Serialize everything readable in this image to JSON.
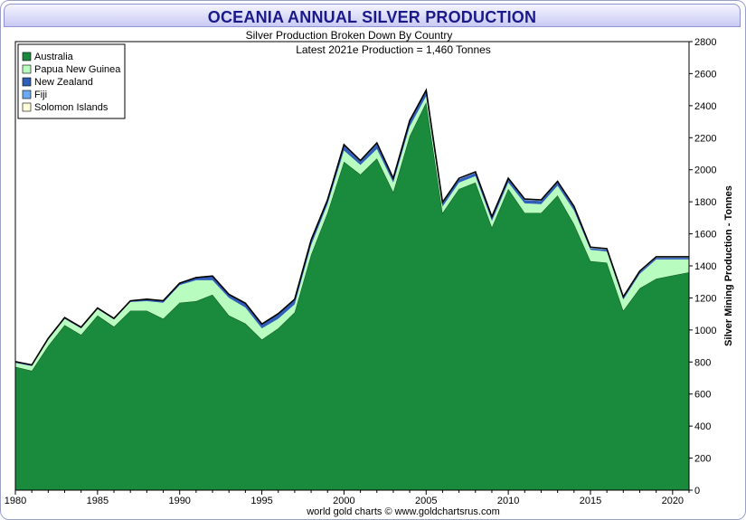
{
  "header": {
    "title": "OCEANIA ANNUAL SILVER PRODUCTION"
  },
  "chart_data": {
    "type": "area",
    "stacked": true,
    "subtitle": "Silver Production Broken Down By Country",
    "subtitle2": "Latest 2021e Production = 1,460 Tonnes",
    "ylabel": "Silver Mining Production - Tonnes",
    "ylim": [
      0,
      2800
    ],
    "yticks": [
      0,
      200,
      400,
      600,
      800,
      1000,
      1200,
      1400,
      1600,
      1800,
      2000,
      2200,
      2400,
      2600,
      2800
    ],
    "xlim": [
      1980,
      2021
    ],
    "xticks": [
      1980,
      1985,
      1990,
      1995,
      2000,
      2005,
      2010,
      2015,
      2020
    ],
    "legend_position": "top-left",
    "grid": false,
    "x": [
      1980,
      1981,
      1982,
      1983,
      1984,
      1985,
      1986,
      1987,
      1988,
      1989,
      1990,
      1991,
      1992,
      1993,
      1994,
      1995,
      1996,
      1997,
      1998,
      1999,
      2000,
      2001,
      2002,
      2003,
      2004,
      2005,
      2006,
      2007,
      2008,
      2009,
      2010,
      2011,
      2012,
      2013,
      2014,
      2015,
      2016,
      2017,
      2018,
      2019,
      2020,
      2021
    ],
    "series": [
      {
        "name": "Australia",
        "color": "#1a8a3c",
        "values": [
          770,
          745,
          900,
          1030,
          970,
          1090,
          1020,
          1120,
          1120,
          1070,
          1170,
          1180,
          1220,
          1090,
          1040,
          940,
          1010,
          1110,
          1470,
          1730,
          2050,
          1970,
          2070,
          1860,
          2210,
          2420,
          1730,
          1880,
          1920,
          1640,
          1880,
          1730,
          1730,
          1840,
          1660,
          1430,
          1420,
          1120,
          1260,
          1320,
          1340,
          1360
        ]
      },
      {
        "name": "Papua New Guinea",
        "color": "#b8fcc0",
        "values": [
          25,
          30,
          40,
          40,
          40,
          40,
          45,
          55,
          60,
          100,
          110,
          130,
          90,
          110,
          100,
          70,
          60,
          50,
          60,
          55,
          70,
          60,
          60,
          60,
          60,
          40,
          40,
          40,
          40,
          40,
          40,
          60,
          55,
          60,
          85,
          70,
          70,
          70,
          90,
          120,
          100,
          80
        ]
      },
      {
        "name": "New Zealand",
        "color": "#2f5fb8",
        "values": [
          5,
          5,
          5,
          5,
          5,
          5,
          5,
          5,
          10,
          10,
          10,
          15,
          25,
          20,
          25,
          25,
          30,
          30,
          30,
          20,
          30,
          20,
          30,
          20,
          30,
          30,
          20,
          20,
          20,
          20,
          20,
          20,
          20,
          20,
          20,
          10,
          10,
          10,
          10,
          10,
          10,
          10
        ]
      },
      {
        "name": "Fiji",
        "color": "#6aaaf0",
        "values": [
          2,
          2,
          2,
          2,
          2,
          2,
          2,
          2,
          2,
          2,
          2,
          2,
          2,
          2,
          2,
          2,
          2,
          2,
          2,
          2,
          2,
          2,
          2,
          2,
          2,
          2,
          2,
          2,
          2,
          2,
          2,
          2,
          2,
          2,
          2,
          2,
          2,
          2,
          2,
          2,
          2,
          2
        ]
      },
      {
        "name": "Solomon Islands",
        "color": "#ffffd8",
        "values": [
          0,
          0,
          0,
          0,
          0,
          0,
          0,
          0,
          0,
          0,
          0,
          0,
          0,
          0,
          0,
          0,
          0,
          0,
          0,
          5,
          5,
          5,
          5,
          5,
          5,
          5,
          5,
          5,
          5,
          5,
          5,
          5,
          5,
          5,
          5,
          5,
          5,
          5,
          5,
          5,
          5,
          5
        ]
      }
    ],
    "credit": "world gold charts © www.goldchartsrus.com"
  }
}
